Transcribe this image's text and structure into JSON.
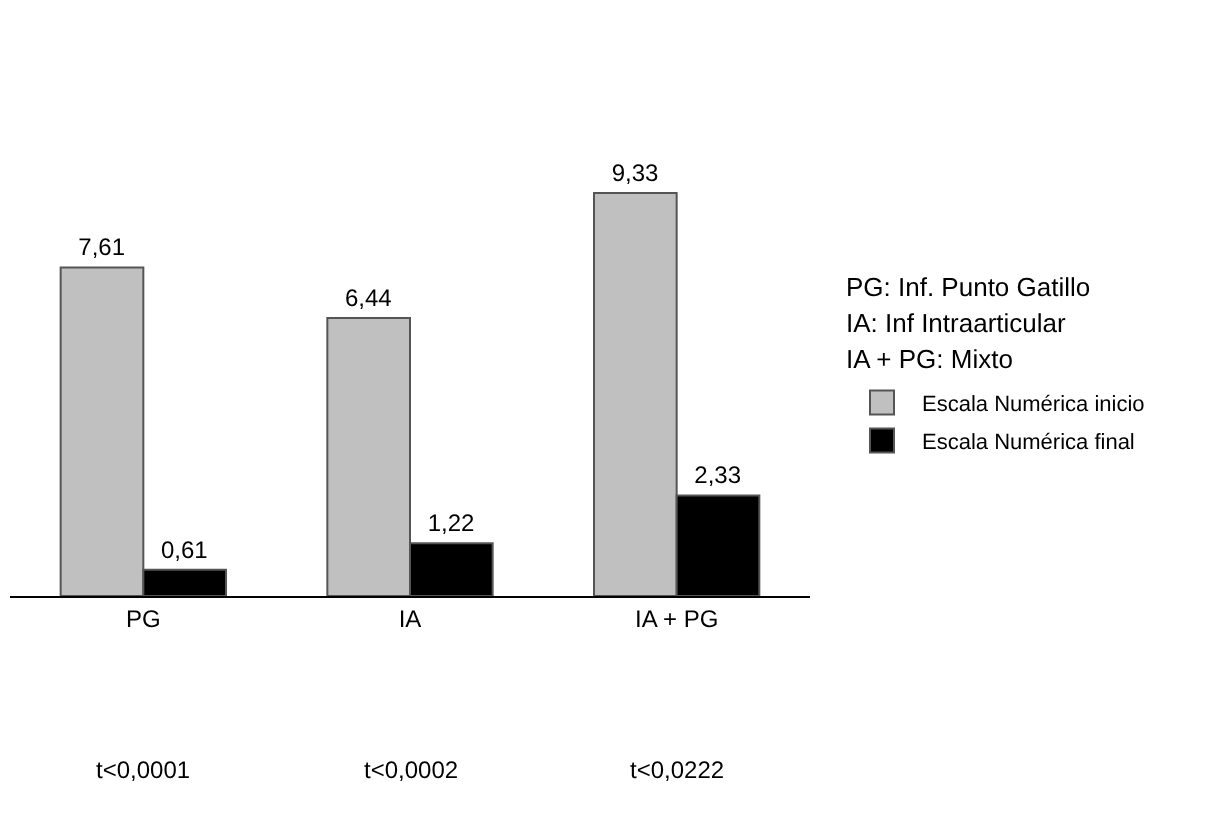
{
  "chart_data": {
    "type": "bar",
    "categories": [
      "PG",
      "IA",
      "IA + PG"
    ],
    "series": [
      {
        "name": "Escala Numérica inicio",
        "color": "#c0c0c0",
        "values": [
          7.61,
          6.44,
          9.33
        ],
        "value_labels": [
          "7,61",
          "6,44",
          "9,33"
        ]
      },
      {
        "name": "Escala Numérica final",
        "color": "#000000",
        "values": [
          0.61,
          1.22,
          2.33
        ],
        "value_labels": [
          "0,61",
          "1,22",
          "2,33"
        ]
      }
    ],
    "legend": "right",
    "annotations": [
      "PG: Inf. Punto Gatillo",
      "IA: Inf Intraarticular",
      "IA + PG: Mixto",
      "t<0,0001",
      "t<0,0002",
      "t<0,0222"
    ]
  }
}
